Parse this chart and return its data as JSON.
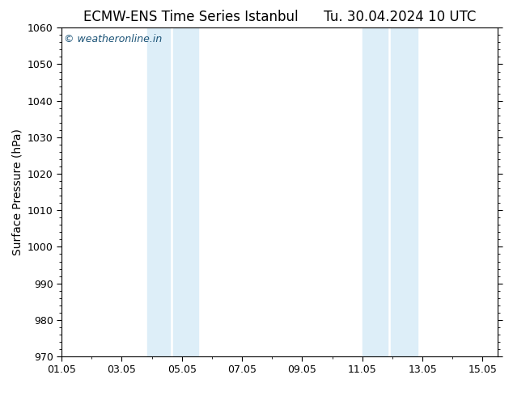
{
  "title": "ECMW-ENS Time Series Istanbul      Tu. 30.04.2024 10 UTC",
  "ylabel": "Surface Pressure (hPa)",
  "xlabel": "",
  "ylim": [
    970,
    1060
  ],
  "yticks": [
    970,
    980,
    990,
    1000,
    1010,
    1020,
    1030,
    1040,
    1050,
    1060
  ],
  "xlim": [
    1.0,
    15.5
  ],
  "xtick_days": [
    1,
    3,
    5,
    7,
    9,
    11,
    13,
    15
  ],
  "xtick_labels": [
    "01.05",
    "03.05",
    "05.05",
    "07.05",
    "09.05",
    "11.05",
    "13.05",
    "15.05"
  ],
  "shaded_bands": [
    {
      "x_start": 3.85,
      "x_end": 4.6
    },
    {
      "x_start": 4.7,
      "x_end": 5.55
    },
    {
      "x_start": 11.0,
      "x_end": 11.85
    },
    {
      "x_start": 11.95,
      "x_end": 12.85
    }
  ],
  "shaded_color": "#ddeef8",
  "background_color": "#ffffff",
  "plot_bg_color": "#ffffff",
  "watermark_text": "© weatheronline.in",
  "watermark_color": "#1a5276",
  "title_fontsize": 12,
  "ylabel_fontsize": 10,
  "tick_fontsize": 9,
  "watermark_fontsize": 9
}
